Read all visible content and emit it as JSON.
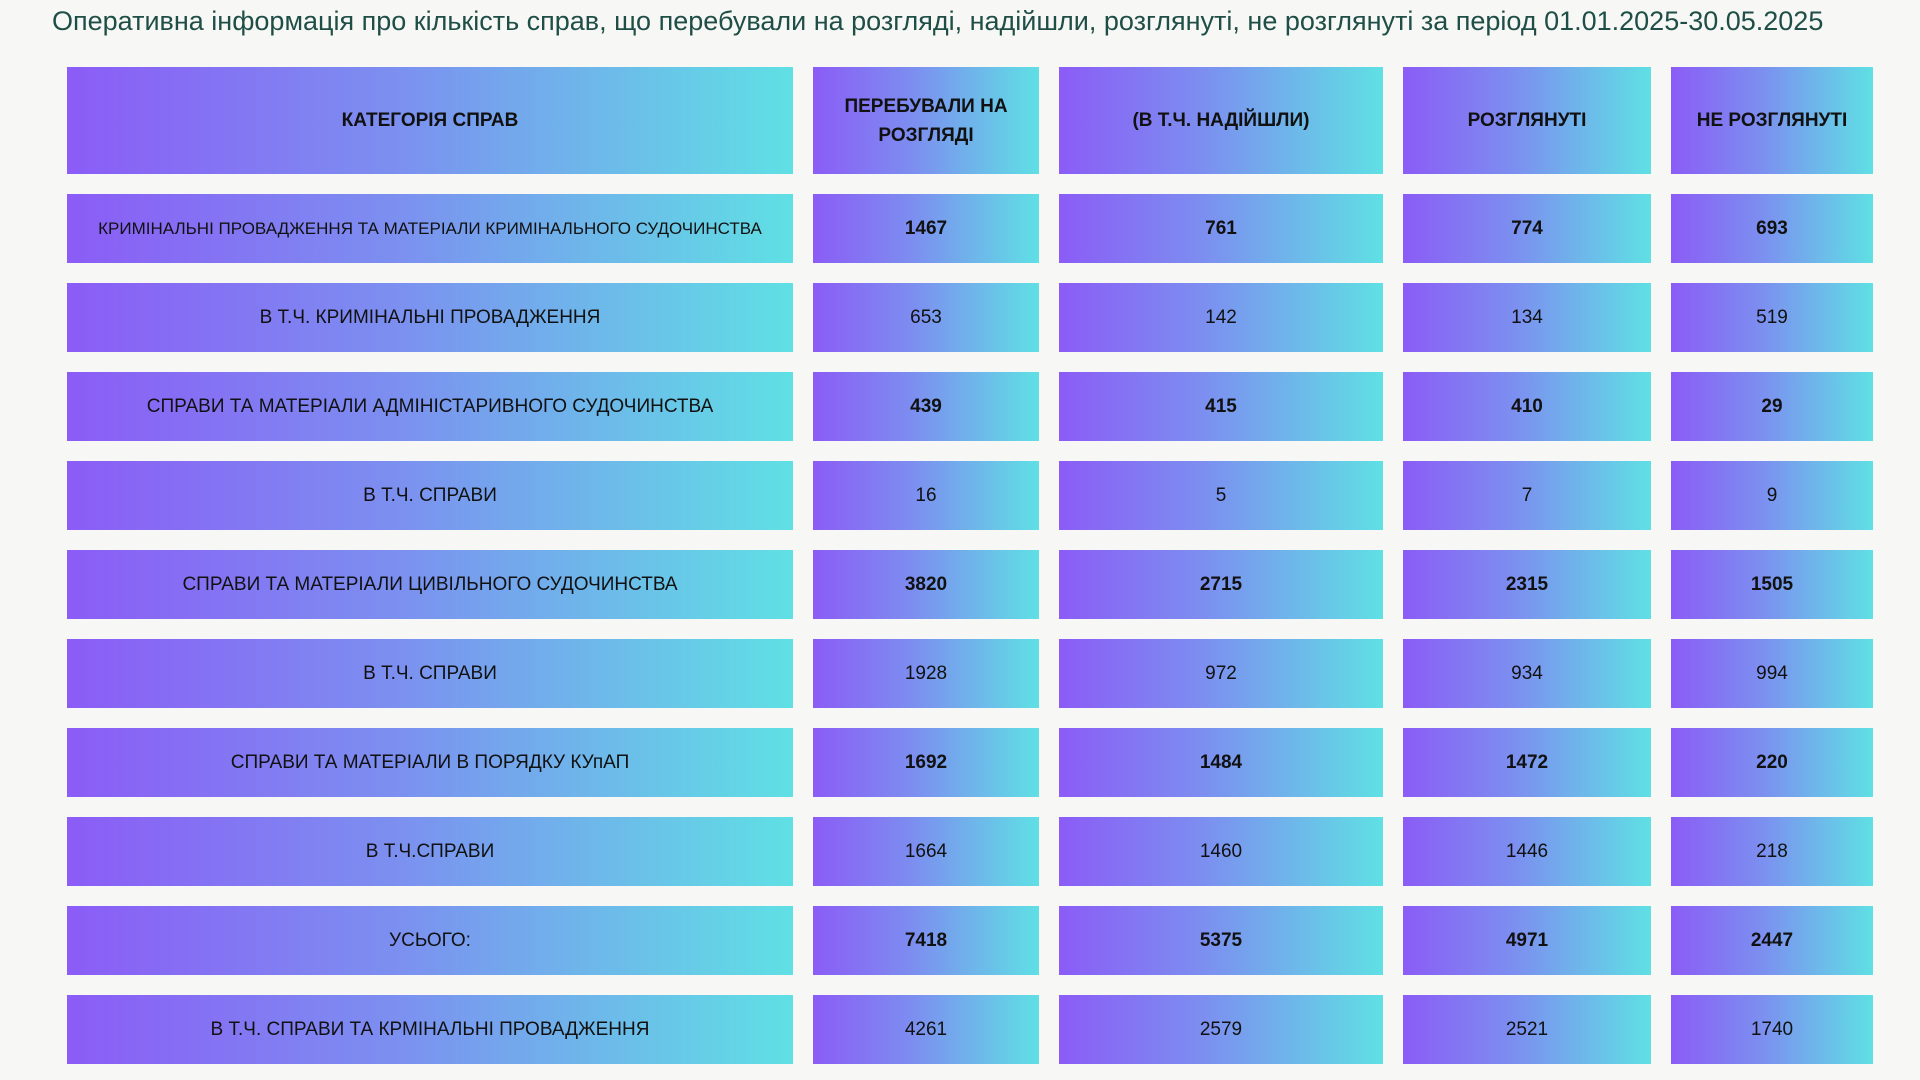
{
  "title": "Оперативна інформація про кількість справ, що перебували на розгляді, надійшли, розглянуті, не розглянуті за період 01.01.2025-30.05.2025",
  "table": {
    "headers": [
      "КАТЕГОРІЯ СПРАВ",
      "ПЕРЕБУВАЛИ НА РОЗГЛЯДІ",
      "(В Т.Ч. НАДІЙШЛИ)",
      "РОЗГЛЯНУТІ",
      "НЕ РОЗГЛЯНУТІ"
    ],
    "rows": [
      [
        "КРИМІНАЛЬНІ ПРОВАДЖЕННЯ ТА МАТЕРІАЛИ КРИМІНАЛЬНОГО СУДОЧИНСТВА",
        "1467",
        "761",
        "774",
        "693"
      ],
      [
        "В Т.Ч. КРИМІНАЛЬНІ ПРОВАДЖЕННЯ",
        "653",
        "142",
        "134",
        "519"
      ],
      [
        "СПРАВИ ТА МАТЕРІАЛИ АДМІНІСТАРИВНОГО СУДОЧИНСТВА",
        "439",
        "415",
        "410",
        "29"
      ],
      [
        "В Т.Ч. СПРАВИ",
        "16",
        "5",
        "7",
        "9"
      ],
      [
        "СПРАВИ ТА МАТЕРІАЛИ ЦИВІЛЬНОГО СУДОЧИНСТВА",
        "3820",
        "2715",
        "2315",
        "1505"
      ],
      [
        "В Т.Ч. СПРАВИ",
        "1928",
        "972",
        "934",
        "994"
      ],
      [
        "СПРАВИ ТА МАТЕРІАЛИ В ПОРЯДКУ КУпАП",
        "1692",
        "1484",
        "1472",
        "220"
      ],
      [
        "В Т.Ч.СПРАВИ",
        "1664",
        "1460",
        "1446",
        "218"
      ],
      [
        "УСЬОГО:",
        "7418",
        "5375",
        "4971",
        "2447"
      ],
      [
        "В Т.Ч. СПРАВИ ТА КРМІНАЛЬНІ ПРОВАДЖЕННЯ",
        "4261",
        "2579",
        "2521",
        "1740"
      ]
    ]
  },
  "colors": {
    "gradient_start": "#8b5cf6",
    "gradient_end": "#5fe0e4",
    "title_text": "#1f4e46",
    "background": "#f7f7f5"
  }
}
